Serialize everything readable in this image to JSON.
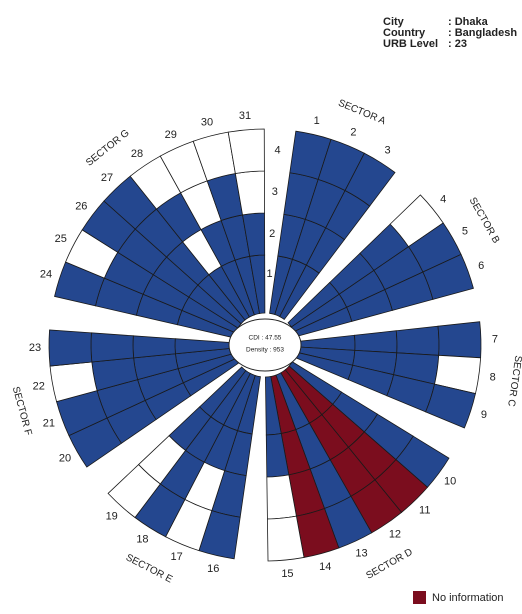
{
  "info": [
    {
      "label": "City",
      "value": ": Dhaka"
    },
    {
      "label": "Country",
      "value": ": Bangladesh"
    },
    {
      "label": "URB Level",
      "value": ": 23"
    }
  ],
  "center": {
    "cdi": "CDI : 47.55",
    "density": "Density : 953"
  },
  "ring_labels": [
    "1",
    "2",
    "3",
    "4"
  ],
  "colors": {
    "filled": "#24478f",
    "empty": "#ffffff",
    "no-info": "#7b0d1e"
  },
  "sectors": [
    {
      "name": "SECTOR A",
      "spokes": [
        {
          "label": "1",
          "cells": [
            "filled",
            "filled",
            "filled",
            "filled"
          ]
        },
        {
          "label": "2",
          "cells": [
            "filled",
            "filled",
            "filled",
            "filled"
          ]
        },
        {
          "label": "3",
          "cells": [
            "filled",
            "filled",
            "filled",
            "filled"
          ]
        }
      ]
    },
    {
      "name": "SECTOR B",
      "spokes": [
        {
          "label": "4",
          "cells": [
            "filled",
            "filled",
            "filled",
            "empty"
          ]
        },
        {
          "label": "5",
          "cells": [
            "filled",
            "filled",
            "filled",
            "filled"
          ]
        },
        {
          "label": "6",
          "cells": [
            "filled",
            "filled",
            "filled",
            "filled"
          ]
        }
      ]
    },
    {
      "name": "SECTOR C",
      "spokes": [
        {
          "label": "7",
          "cells": [
            "filled",
            "filled",
            "filled",
            "filled"
          ]
        },
        {
          "label": "8",
          "cells": [
            "filled",
            "filled",
            "filled",
            "empty"
          ]
        },
        {
          "label": "9",
          "cells": [
            "filled",
            "filled",
            "filled",
            "filled"
          ]
        }
      ]
    },
    {
      "name": "SECTOR D",
      "spokes": [
        {
          "label": "10",
          "cells": [
            "filled",
            "filled",
            "filled",
            "filled"
          ]
        },
        {
          "label": "11",
          "cells": [
            "no-info",
            "no-info",
            "no-info",
            "no-info"
          ]
        },
        {
          "label": "12",
          "cells": [
            "no-info",
            "no-info",
            "no-info",
            "no-info"
          ]
        },
        {
          "label": "13",
          "cells": [
            "filled",
            "filled",
            "filled",
            "filled"
          ]
        },
        {
          "label": "14",
          "cells": [
            "no-info",
            "no-info",
            "no-info",
            "no-info"
          ]
        },
        {
          "label": "15",
          "cells": [
            "filled",
            "filled",
            "empty",
            "empty"
          ]
        }
      ]
    },
    {
      "name": "SECTOR E",
      "spokes": [
        {
          "label": "16",
          "cells": [
            "filled",
            "filled",
            "filled",
            "filled"
          ]
        },
        {
          "label": "17",
          "cells": [
            "filled",
            "filled",
            "empty",
            "empty"
          ]
        },
        {
          "label": "18",
          "cells": [
            "filled",
            "filled",
            "filled",
            "filled"
          ]
        },
        {
          "label": "19",
          "cells": [
            "filled",
            "filled",
            "empty",
            "empty"
          ]
        }
      ]
    },
    {
      "name": "SECTOR F",
      "spokes": [
        {
          "label": "20",
          "cells": [
            "filled",
            "filled",
            "filled",
            "filled"
          ]
        },
        {
          "label": "21",
          "cells": [
            "filled",
            "filled",
            "filled",
            "filled"
          ]
        },
        {
          "label": "22",
          "cells": [
            "filled",
            "filled",
            "filled",
            "empty"
          ]
        },
        {
          "label": "23",
          "cells": [
            "filled",
            "filled",
            "filled",
            "filled"
          ]
        }
      ]
    },
    {
      "name": "SECTOR G",
      "spokes": [
        {
          "label": "24",
          "cells": [
            "filled",
            "filled",
            "filled",
            "filled"
          ]
        },
        {
          "label": "25",
          "cells": [
            "filled",
            "filled",
            "filled",
            "empty"
          ]
        },
        {
          "label": "26",
          "cells": [
            "filled",
            "filled",
            "filled",
            "filled"
          ]
        },
        {
          "label": "27",
          "cells": [
            "filled",
            "filled",
            "filled",
            "filled"
          ]
        },
        {
          "label": "28",
          "cells": [
            "filled",
            "empty",
            "filled",
            "empty"
          ]
        },
        {
          "label": "29",
          "cells": [
            "filled",
            "filled",
            "empty",
            "empty"
          ]
        },
        {
          "label": "30",
          "cells": [
            "filled",
            "filled",
            "filled",
            "empty"
          ]
        },
        {
          "label": "31",
          "cells": [
            "filled",
            "filled",
            "empty",
            "empty"
          ]
        }
      ]
    }
  ],
  "legend": {
    "label": "No information"
  }
}
